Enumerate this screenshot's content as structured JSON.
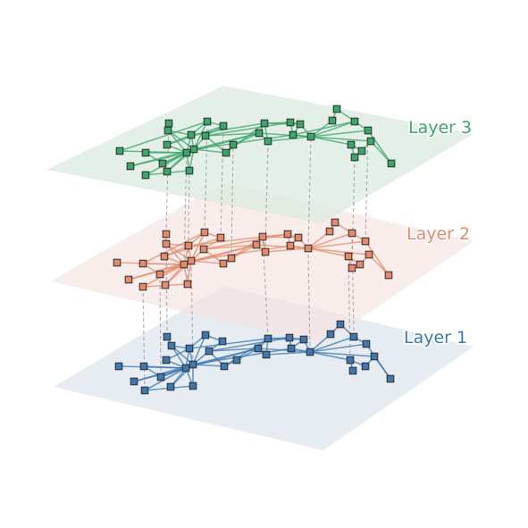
{
  "diagram": {
    "type": "multilayer-network",
    "layers": [
      {
        "id": 1,
        "label": "Layer 1",
        "color": "#3f78b0",
        "plane_color": "#dfe6ef"
      },
      {
        "id": 2,
        "label": "Layer 2",
        "color": "#e48a6a",
        "plane_color": "#f6e4e0"
      },
      {
        "id": 3,
        "label": "Layer 3",
        "color": "#3ca66a",
        "plane_color": "#dbeadf"
      }
    ],
    "interlayer_link_color": "#9a9a9a",
    "node_outline_color": "#2b2b2b"
  }
}
